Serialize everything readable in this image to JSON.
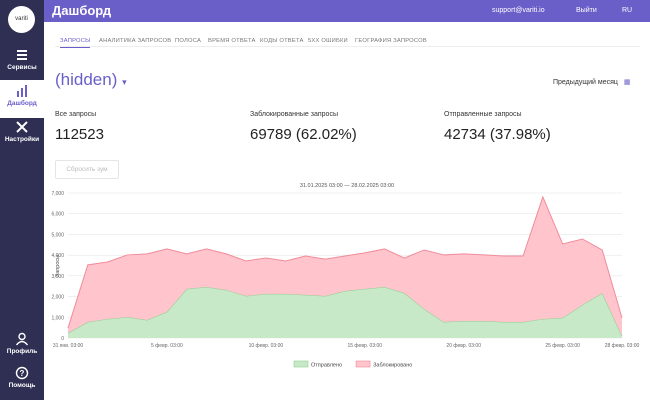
{
  "sidebar": {
    "logo": "variti",
    "items": [
      "Сервисы",
      "Дашборд",
      "Настройки"
    ],
    "bottom_items": [
      "Профиль",
      "Помощь"
    ]
  },
  "header": {
    "title": "Дашборд",
    "email": "support@variti.io",
    "logout": "Выйти",
    "lang": "RU"
  },
  "tabs": [
    "ЗАПРОСЫ",
    "АНАЛИТИКА ЗАПРОСОВ",
    "ПОЛОСА",
    "ВРЕМЯ ОТВЕТА",
    "КОДЫ ОТВЕТА",
    "5XX ОШИБКИ",
    "ГЕОГРАФИЯ ЗАПРОСОВ"
  ],
  "service": "(hidden)",
  "period": "Предыдущий месяц",
  "stats": [
    {
      "label": "Все запросы",
      "value": "112523"
    },
    {
      "label": "Заблокированные запросы",
      "value": "69789 (62.02%)"
    },
    {
      "label": "Отправленные запросы",
      "value": "42734 (37.98%)"
    }
  ],
  "reset_zoom": "Сбросить зум",
  "chart_data": {
    "type": "stacked_area",
    "subtitle": "31.01.2025 03:00 — 28.02.2025 03:00",
    "y_label": "Запросы",
    "categories": [
      "31 янв. 03:00",
      null,
      null,
      null,
      null,
      "5 февр. 03:00",
      null,
      null,
      null,
      null,
      "10 февр. 03:00",
      null,
      null,
      null,
      null,
      "15 февр. 03:00",
      null,
      null,
      null,
      null,
      "20 февр. 03:00",
      null,
      null,
      null,
      null,
      "25 февр. 03:00",
      null,
      null,
      "28 февр. 03:00"
    ],
    "series": [
      {
        "name": "Отправлено",
        "color": "#8fcf8f",
        "fill": "#c8e9c8",
        "values": [
          240,
          770,
          920,
          1010,
          870,
          1260,
          2370,
          2460,
          2320,
          2030,
          2130,
          2130,
          2080,
          2030,
          2270,
          2370,
          2460,
          2170,
          1400,
          770,
          820,
          820,
          770,
          770,
          920,
          970,
          1600,
          2170,
          100
        ]
      },
      {
        "name": "Заблокировано",
        "color": "#f08c9a",
        "fill": "#ffc4cc",
        "values": [
          240,
          2760,
          2750,
          3000,
          3190,
          3040,
          1690,
          1840,
          1740,
          1690,
          1730,
          1590,
          1880,
          1780,
          1690,
          1740,
          1840,
          1690,
          2850,
          3240,
          3240,
          3190,
          3190,
          3190,
          5890,
          3570,
          3180,
          2080,
          870
        ]
      }
    ],
    "ylim": [
      0,
      7000
    ],
    "yticks": [
      0,
      {
        "value": 1000,
        "label": "1,000"
      },
      {
        "value": 2000,
        "label": "2,000"
      },
      {
        "value": 3000,
        "label": "3,000"
      },
      {
        "value": 4000,
        "label": "4,000"
      },
      {
        "value": 5000,
        "label": "5,000"
      },
      {
        "value": 6000,
        "label": "6,000"
      },
      {
        "value": 7000,
        "label": "7,000"
      }
    ],
    "grid": true,
    "legend": "bottom"
  }
}
